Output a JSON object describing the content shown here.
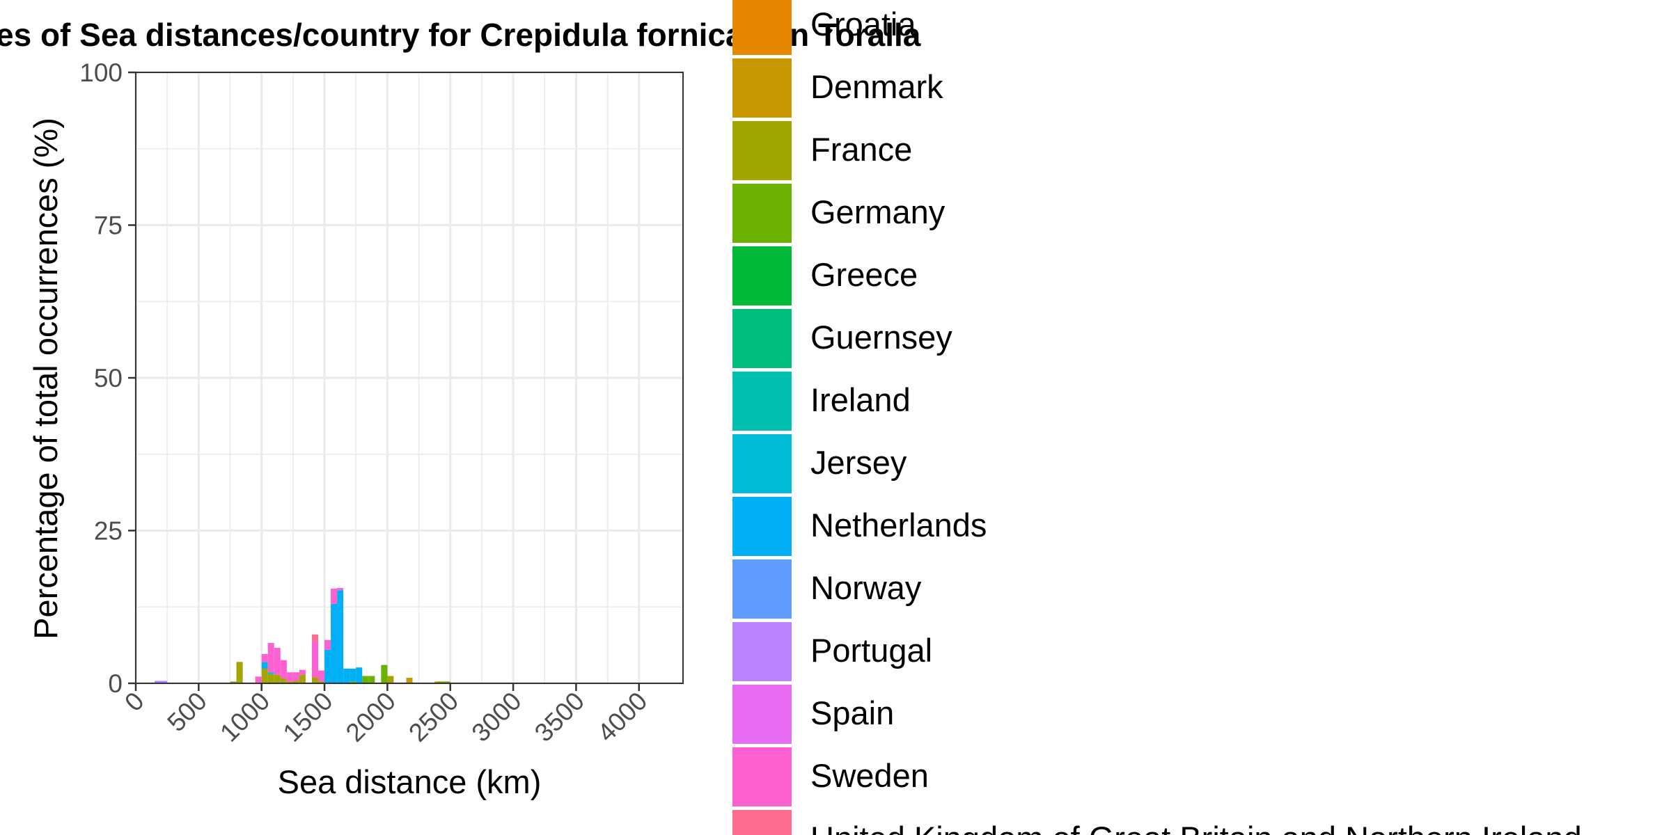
{
  "chart_data": {
    "type": "bar",
    "stacked": true,
    "title": "es of Sea distances/country for Crepidula fornicata in Toralla",
    "xlabel": "Sea distance (km)",
    "ylabel": "Percentage of total occurrences (%)",
    "xlim": [
      0,
      4350
    ],
    "ylim": [
      0,
      100
    ],
    "x_ticks": [
      0,
      500,
      1000,
      1500,
      2000,
      2500,
      3000,
      3500,
      4000
    ],
    "y_ticks": [
      0,
      25,
      50,
      75,
      100
    ],
    "x_tick_labels": [
      "0",
      "500",
      "1000",
      "1500",
      "2000",
      "2500",
      "3000",
      "3500",
      "4000"
    ],
    "y_tick_labels": [
      "0",
      "25",
      "50",
      "75",
      "100"
    ],
    "grid": true,
    "legend_position": "right",
    "bin_width": 50,
    "series": [
      {
        "name": "Croatia",
        "color": "#E58700",
        "values": []
      },
      {
        "name": "Denmark",
        "color": "#C99800",
        "values": [
          [
            2175,
            0.9
          ],
          [
            2400,
            0.3
          ]
        ]
      },
      {
        "name": "France",
        "color": "#A3A500",
        "values": [
          [
            775,
            0.3
          ],
          [
            825,
            3.5
          ],
          [
            1025,
            2.4
          ],
          [
            1075,
            1.5
          ],
          [
            1125,
            1.4
          ],
          [
            1175,
            0.8
          ],
          [
            1225,
            0.3
          ],
          [
            1275,
            0.4
          ],
          [
            1325,
            1.4
          ],
          [
            1425,
            1.0
          ],
          [
            1475,
            0.3
          ],
          [
            2025,
            1.2
          ]
        ]
      },
      {
        "name": "Germany",
        "color": "#6BB100",
        "values": [
          [
            1725,
            0.3
          ],
          [
            1825,
            1.2
          ],
          [
            1875,
            1.2
          ],
          [
            1975,
            3.0
          ],
          [
            2425,
            0.3
          ],
          [
            2475,
            0.3
          ]
        ]
      },
      {
        "name": "Greece",
        "color": "#00BA38",
        "values": []
      },
      {
        "name": "Guernsey",
        "color": "#00BF7D",
        "values": []
      },
      {
        "name": "Ireland",
        "color": "#00C0AF",
        "values": []
      },
      {
        "name": "Jersey",
        "color": "#00BCD8",
        "values": [
          [
            1075,
            0.3
          ]
        ]
      },
      {
        "name": "Netherlands",
        "color": "#00B0F6",
        "values": [
          [
            1025,
            1.1
          ],
          [
            1525,
            5.5
          ],
          [
            1575,
            13.0
          ],
          [
            1625,
            15.2
          ],
          [
            1675,
            2.4
          ],
          [
            1725,
            2.1
          ],
          [
            1775,
            2.6
          ]
        ]
      },
      {
        "name": "Norway",
        "color": "#619CFF",
        "values": []
      },
      {
        "name": "Portugal",
        "color": "#B983FF",
        "values": [
          [
            175,
            0.4
          ],
          [
            225,
            0.4
          ]
        ]
      },
      {
        "name": "Spain",
        "color": "#E76BF3",
        "values": []
      },
      {
        "name": "Sweden",
        "color": "#FD61D1",
        "values": [
          [
            975,
            1.1
          ],
          [
            1025,
            1.3
          ],
          [
            1075,
            4.8
          ],
          [
            1125,
            4.4
          ],
          [
            1175,
            3.0
          ],
          [
            1225,
            1.5
          ],
          [
            1275,
            1.4
          ],
          [
            1325,
            0.8
          ],
          [
            1425,
            5.9
          ],
          [
            1475,
            1.8
          ],
          [
            1525,
            1.6
          ],
          [
            1575,
            2.5
          ],
          [
            1625,
            0.4
          ]
        ]
      },
      {
        "name": "United Kingdom of Great Britain and Northern Ireland",
        "color": "#FF6C91",
        "values": [
          [
            1425,
            1.1
          ]
        ]
      }
    ]
  }
}
